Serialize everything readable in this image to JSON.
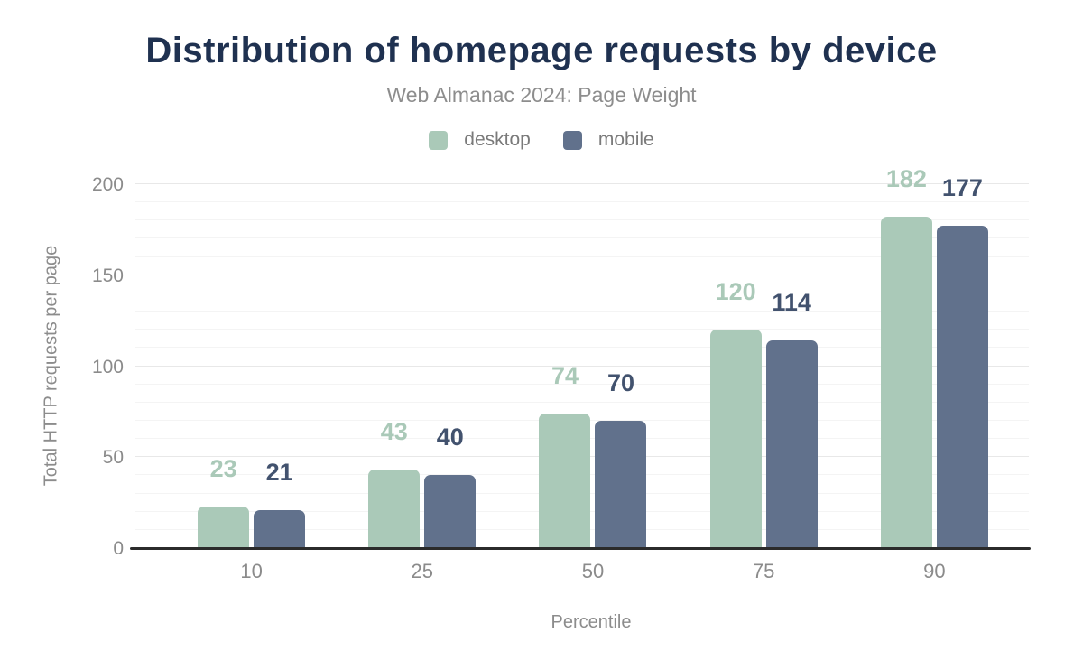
{
  "chart": {
    "title": "Distribution of homepage requests by device",
    "subtitle": "Web Almanac 2024: Page Weight",
    "xlabel": "Percentile",
    "ylabel": "Total HTTP requests per page"
  },
  "chart_data": {
    "type": "bar",
    "title": "Distribution of homepage requests by device",
    "subtitle": "Web Almanac 2024: Page Weight",
    "xlabel": "Percentile",
    "ylabel": "Total HTTP requests per page",
    "categories": [
      "10",
      "25",
      "50",
      "75",
      "90"
    ],
    "series": [
      {
        "name": "desktop",
        "values": [
          23,
          43,
          74,
          120,
          182
        ],
        "color": "#aac9b8",
        "label_color": "#aac9b8"
      },
      {
        "name": "mobile",
        "values": [
          21,
          40,
          70,
          114,
          177
        ],
        "color": "#61718c",
        "label_color": "#42526e"
      }
    ],
    "ylim": [
      0,
      200
    ],
    "yticks": [
      0,
      50,
      100,
      150,
      200
    ],
    "minor_grid_step": 10,
    "grid": "on",
    "legend_position": "top-center"
  },
  "colors": {
    "title": "#1f3150",
    "subtitle": "#8d8d8d",
    "tick_label": "#8b8b8b",
    "axis_title": "#8c8c8c",
    "axis_line": "#2b2b2b",
    "grid_major": "#e8e8e8",
    "grid_minor": "#f4f4f4",
    "background": "#ffffff"
  }
}
